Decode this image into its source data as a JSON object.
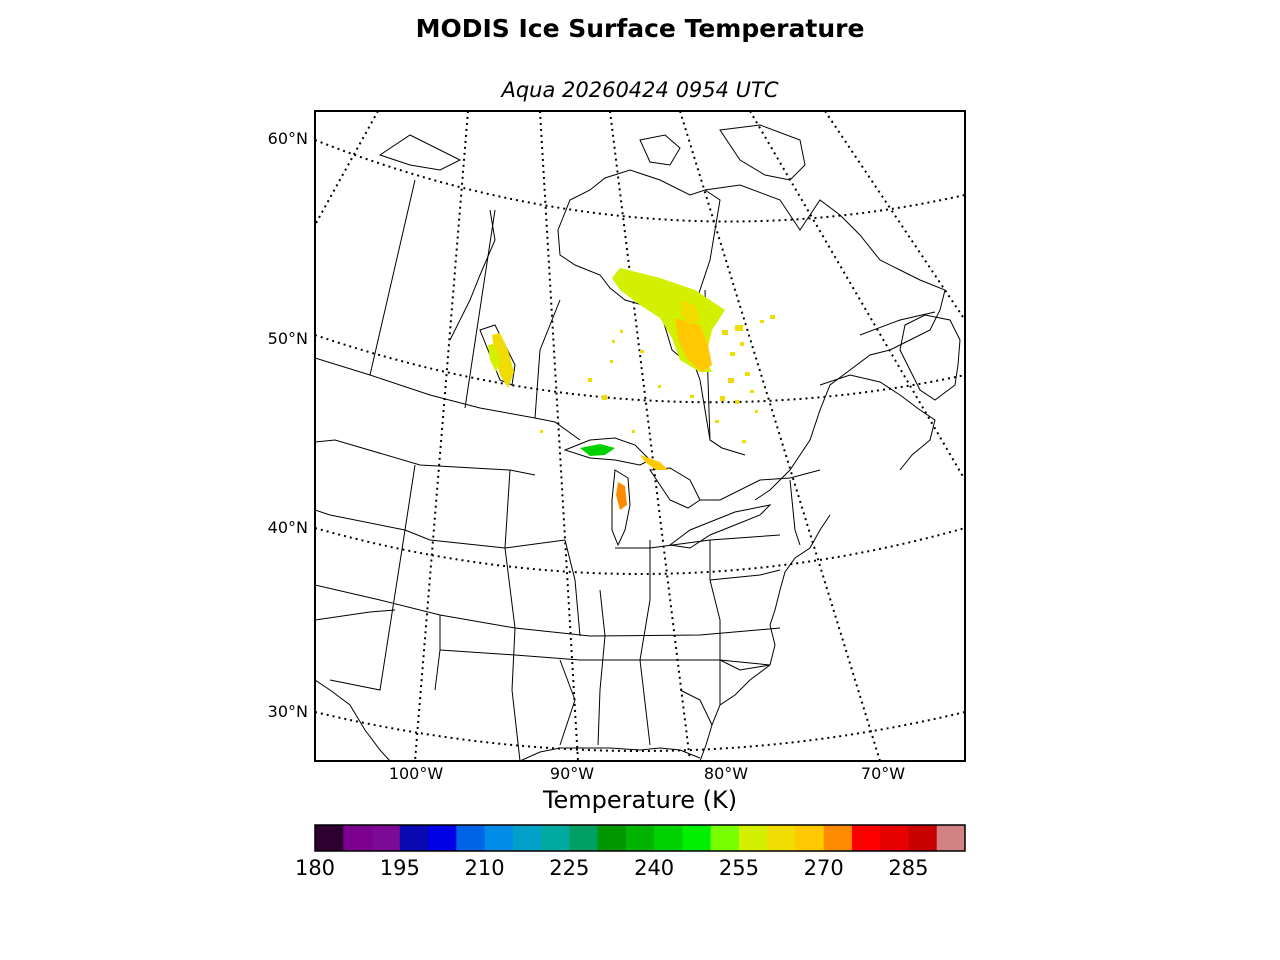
{
  "title": "MODIS Ice Surface Temperature",
  "subtitle": "Aqua 20260424 0954 UTC",
  "map": {
    "latitude_labels": [
      "60°N",
      "50°N",
      "40°N",
      "30°N"
    ],
    "longitude_labels": [
      "100°W",
      "90°W",
      "80°W",
      "70°W"
    ],
    "graticule_style": "dotted"
  },
  "colorbar": {
    "label": "Temperature (K)",
    "min": 180,
    "max": 295,
    "step": 5,
    "tick_labels": [
      "180",
      "195",
      "210",
      "225",
      "240",
      "255",
      "270",
      "285"
    ],
    "colors": [
      "#2d0030",
      "#7c0090",
      "#7d0a96",
      "#0a0ab4",
      "#0000e6",
      "#0064e6",
      "#008ce6",
      "#00a0c8",
      "#00aaa0",
      "#00a064",
      "#009600",
      "#00b400",
      "#00d200",
      "#00f000",
      "#78ff00",
      "#d2f000",
      "#f0dc00",
      "#ffc800",
      "#ff8c00",
      "#ff0000",
      "#e60000",
      "#c80000",
      "#d28282"
    ]
  }
}
